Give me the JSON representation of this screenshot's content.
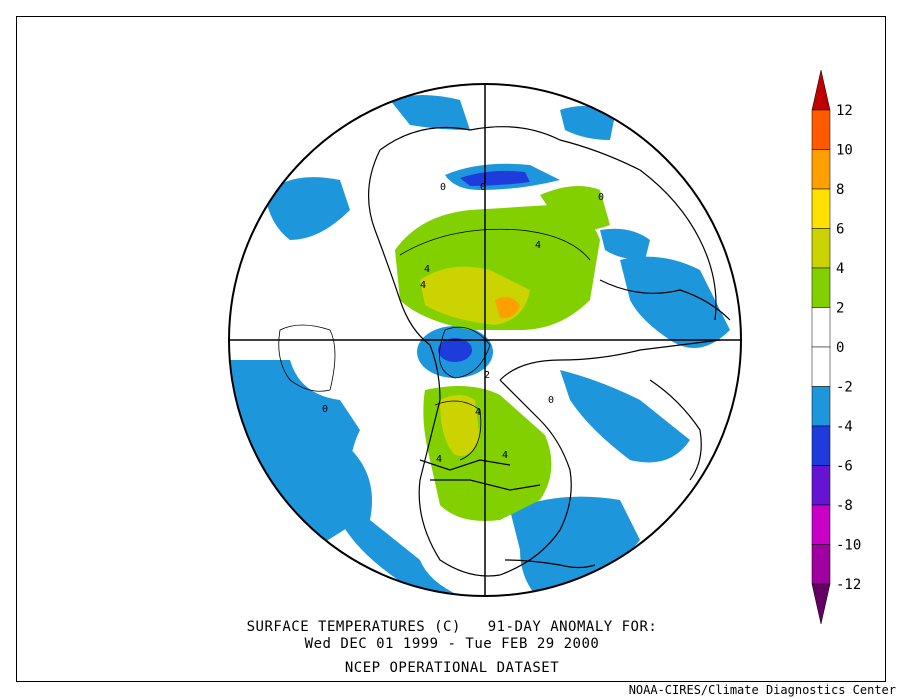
{
  "map": {
    "projection": "north-polar-stereographic",
    "fields": "surface air temperature anomaly (shaded) with contour labels",
    "contour_labels": [
      "0",
      "0",
      "0",
      "0",
      "4",
      "4",
      "4",
      "4",
      "4",
      "4",
      "2",
      "0"
    ]
  },
  "colorbar": {
    "levels": [
      "12",
      "10",
      "8",
      "6",
      "4",
      "2",
      "0",
      "-2",
      "-4",
      "-6",
      "-8",
      "-10",
      "-12"
    ],
    "colors": [
      "#c00000",
      "#ff5a00",
      "#ff9f00",
      "#ffe000",
      "#cbd400",
      "#82d000",
      "#ffffff",
      "#ffffff",
      "#1e96dc",
      "#1e3cdc",
      "#6414d2",
      "#c800c8",
      "#a000a0",
      "#640064"
    ]
  },
  "caption": {
    "line1": "SURFACE TEMPERATURES (C)   91-DAY ANOMALY FOR:",
    "line2": "Wed DEC 01 1999 - Tue FEB 29 2000",
    "line3": "NCEP OPERATIONAL DATASET"
  },
  "credit": "NOAA-CIRES/Climate Diagnostics Center"
}
